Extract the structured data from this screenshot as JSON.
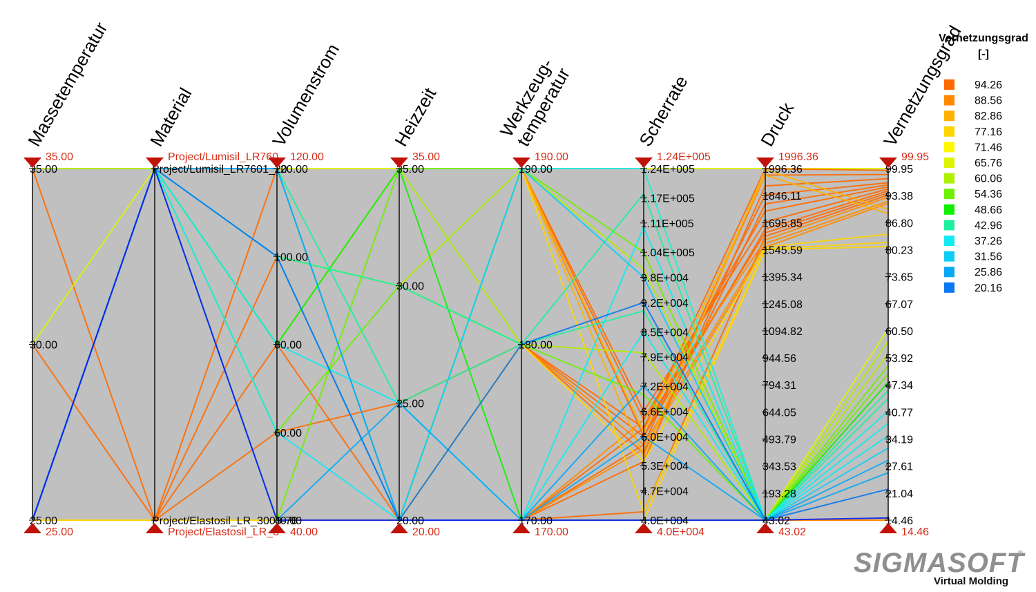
{
  "chart_data": {
    "type": "parallel_coordinates",
    "title": "",
    "axes": [
      {
        "name": "Massetemperatur",
        "min": 25,
        "max": 35,
        "min_label": "25.00",
        "max_label": "35.00",
        "ticks": [
          {
            "v": 35,
            "t": "35.00"
          },
          {
            "v": 30,
            "t": "30.00"
          },
          {
            "v": 25,
            "t": "25.00"
          }
        ]
      },
      {
        "name": "Material",
        "categorical": true,
        "min": 0,
        "max": 1,
        "min_label": "Project/Elastosil_LR_3",
        "max_label": "Project/Lumisil_LR760",
        "ticks": [
          {
            "v": 1,
            "t": "Project/Lumisil_LR7601_20"
          },
          {
            "v": 0,
            "t": "Project/Elastosil_LR_3003-70"
          }
        ]
      },
      {
        "name": "Volumenstrom",
        "min": 40,
        "max": 120,
        "min_label": "40.00",
        "max_label": "120.00",
        "ticks": [
          {
            "v": 120,
            "t": "120.00"
          },
          {
            "v": 100,
            "t": "100.00"
          },
          {
            "v": 80,
            "t": "80.00"
          },
          {
            "v": 60,
            "t": "60.00"
          },
          {
            "v": 40,
            "t": "40.00"
          }
        ]
      },
      {
        "name": "Heizzeit",
        "min": 20,
        "max": 35,
        "min_label": "20.00",
        "max_label": "35.00",
        "ticks": [
          {
            "v": 35,
            "t": "35.00"
          },
          {
            "v": 30,
            "t": "30.00"
          },
          {
            "v": 25,
            "t": "25.00"
          },
          {
            "v": 20,
            "t": "20.00"
          }
        ]
      },
      {
        "name": "Werkzeug-temperatur",
        "name_lines": [
          "Werkzeug-",
          "temperatur"
        ],
        "min": 170,
        "max": 190,
        "min_label": "170.00",
        "max_label": "190.00",
        "ticks": [
          {
            "v": 190,
            "t": "190.00"
          },
          {
            "v": 180,
            "t": "180.00"
          },
          {
            "v": 170,
            "t": "170.00"
          }
        ]
      },
      {
        "name": "Scherrate",
        "min": 40000,
        "max": 124000,
        "min_label": "4.0E+004",
        "max_label": "1.24E+005",
        "ticks": [
          {
            "v": 124000,
            "t": "1.24E+005"
          },
          {
            "v": 117000,
            "t": "1.17E+005"
          },
          {
            "v": 111000,
            "t": "1.11E+005"
          },
          {
            "v": 104000,
            "t": "1.04E+005"
          },
          {
            "v": 98000,
            "t": "9.8E+004"
          },
          {
            "v": 92000,
            "t": "9.2E+004"
          },
          {
            "v": 85000,
            "t": "8.5E+004"
          },
          {
            "v": 79000,
            "t": "7.9E+004"
          },
          {
            "v": 72000,
            "t": "7.2E+004"
          },
          {
            "v": 66000,
            "t": "6.6E+004"
          },
          {
            "v": 60000,
            "t": "6.0E+004"
          },
          {
            "v": 53000,
            "t": "5.3E+004"
          },
          {
            "v": 47000,
            "t": "4.7E+004"
          },
          {
            "v": 40000,
            "t": "4.0E+004"
          }
        ]
      },
      {
        "name": "Druck",
        "min": 43.02,
        "max": 1996.36,
        "min_label": "43.02",
        "max_label": "1996.36",
        "ticks": [
          {
            "v": 1996.36,
            "t": "1996.36"
          },
          {
            "v": 1846.11,
            "t": "1846.11"
          },
          {
            "v": 1695.85,
            "t": "1695.85"
          },
          {
            "v": 1545.59,
            "t": "1545.59"
          },
          {
            "v": 1395.34,
            "t": "1395.34"
          },
          {
            "v": 1245.08,
            "t": "1245.08"
          },
          {
            "v": 1094.82,
            "t": "1094.82"
          },
          {
            "v": 944.56,
            "t": "944.56"
          },
          {
            "v": 794.31,
            "t": "794.31"
          },
          {
            "v": 644.05,
            "t": "644.05"
          },
          {
            "v": 493.79,
            "t": "493.79"
          },
          {
            "v": 343.53,
            "t": "343.53"
          },
          {
            "v": 193.28,
            "t": "193.28"
          },
          {
            "v": 43.02,
            "t": "43.02"
          }
        ]
      },
      {
        "name": "Vernetzungsgrad",
        "min": 14.46,
        "max": 99.95,
        "min_label": "14.46",
        "max_label": "99.95",
        "ticks": [
          {
            "v": 99.95,
            "t": "99.95"
          },
          {
            "v": 93.38,
            "t": "93.38"
          },
          {
            "v": 86.8,
            "t": "86.80"
          },
          {
            "v": 80.23,
            "t": "80.23"
          },
          {
            "v": 73.65,
            "t": "73.65"
          },
          {
            "v": 67.07,
            "t": "67.07"
          },
          {
            "v": 60.5,
            "t": "60.50"
          },
          {
            "v": 53.92,
            "t": "53.92"
          },
          {
            "v": 47.34,
            "t": "47.34"
          },
          {
            "v": 40.77,
            "t": "40.77"
          },
          {
            "v": 34.19,
            "t": "34.19"
          },
          {
            "v": 27.61,
            "t": "27.61"
          },
          {
            "v": 21.04,
            "t": "21.04"
          },
          {
            "v": 14.46,
            "t": "14.46"
          }
        ]
      }
    ],
    "legend": {
      "title_lines": [
        "Vernetzungsgrad",
        "[-]"
      ],
      "placement": "right",
      "items": [
        {
          "label": "94.26",
          "color": "#ff6a00"
        },
        {
          "label": "88.56",
          "color": "#ff8a00"
        },
        {
          "label": "82.86",
          "color": "#ffb000"
        },
        {
          "label": "77.16",
          "color": "#ffd500"
        },
        {
          "label": "71.46",
          "color": "#fff700"
        },
        {
          "label": "65.76",
          "color": "#ddf500"
        },
        {
          "label": "60.06",
          "color": "#aef000"
        },
        {
          "label": "54.36",
          "color": "#6ef000"
        },
        {
          "label": "48.66",
          "color": "#12ee00"
        },
        {
          "label": "42.96",
          "color": "#1ef0a0"
        },
        {
          "label": "37.26",
          "color": "#12eaf0"
        },
        {
          "label": "31.56",
          "color": "#10cdf5"
        },
        {
          "label": "25.86",
          "color": "#0aa8f5"
        },
        {
          "label": "20.16",
          "color": "#0a78f0"
        }
      ]
    },
    "polylines": [
      {
        "values": [
          35,
          0,
          120,
          20,
          170,
          62000,
          1996,
          99.5
        ],
        "color": "#ff6a00"
      },
      {
        "values": [
          30,
          0,
          100,
          20,
          170,
          58000,
          1960,
          98.5
        ],
        "color": "#ff6a00"
      },
      {
        "values": [
          25,
          0,
          80,
          20,
          170,
          54000,
          1900,
          97.5
        ],
        "color": "#ff6a00"
      },
      {
        "values": [
          25,
          0,
          60,
          25,
          180,
          60000,
          1850,
          96.5
        ],
        "color": "#ff6a00"
      },
      {
        "values": [
          25,
          0,
          40,
          20,
          180,
          56000,
          1800,
          96.0
        ],
        "color": "#ff6a00"
      },
      {
        "values": [
          25,
          0,
          40,
          20,
          190,
          64000,
          1760,
          95.5
        ],
        "color": "#ff6a00"
      },
      {
        "values": [
          25,
          0,
          40,
          20,
          190,
          66000,
          1700,
          95.0
        ],
        "color": "#ff6a00"
      },
      {
        "values": [
          25,
          0,
          40,
          20,
          190,
          60000,
          1660,
          94.5
        ],
        "color": "#ff6a00"
      },
      {
        "values": [
          25,
          0,
          40,
          20,
          180,
          62000,
          1640,
          94.0
        ],
        "color": "#ff6a00"
      },
      {
        "values": [
          25,
          0,
          40,
          20,
          170,
          42000,
          1620,
          93.5
        ],
        "color": "#ff6a00"
      },
      {
        "values": [
          25,
          0,
          40,
          20,
          170,
          64000,
          1600,
          93.0
        ],
        "color": "#ff8a00"
      },
      {
        "values": [
          25,
          0,
          40,
          20,
          180,
          58000,
          1580,
          92.0
        ],
        "color": "#ff8a00"
      },
      {
        "values": [
          25,
          0,
          40,
          20,
          170,
          57000,
          1560,
          91.5
        ],
        "color": "#ff8a00"
      },
      {
        "values": [
          25,
          0,
          40,
          20,
          190,
          55000,
          1990,
          90.0
        ],
        "color": "#ffb000"
      },
      {
        "values": [
          25,
          0,
          40,
          20,
          190,
          61000,
          1960,
          89.0
        ],
        "color": "#ffb000"
      },
      {
        "values": [
          25,
          0,
          40,
          20,
          180,
          54000,
          1560,
          84.0
        ],
        "color": "#ffd500"
      },
      {
        "values": [
          25,
          0,
          40,
          20,
          190,
          42000,
          1550,
          82.0
        ],
        "color": "#ffd500"
      },
      {
        "values": [
          25,
          0,
          40,
          20,
          170,
          40000,
          1545,
          81.0
        ],
        "color": "#ffd500"
      },
      {
        "values": [
          30,
          1,
          120,
          35,
          190,
          124000,
          43.02,
          61.0
        ],
        "color": "#ddf500"
      },
      {
        "values": [
          25,
          1,
          100,
          30,
          190,
          100000,
          43.02,
          58.0
        ],
        "color": "#aef000"
      },
      {
        "values": [
          35,
          1,
          80,
          35,
          180,
          80000,
          43.02,
          55.0
        ],
        "color": "#aef000"
      },
      {
        "values": [
          25,
          1,
          60,
          30,
          180,
          70000,
          43.02,
          52.0
        ],
        "color": "#6ef000"
      },
      {
        "values": [
          25,
          1,
          40,
          35,
          190,
          104000,
          43.02,
          50.0
        ],
        "color": "#6ef000"
      },
      {
        "values": [
          25,
          1,
          80,
          35,
          170,
          40000,
          43.02,
          48.0
        ],
        "color": "#12ee00"
      },
      {
        "values": [
          25,
          1,
          100,
          30,
          180,
          90000,
          43.02,
          46.0
        ],
        "color": "#1ef0a0"
      },
      {
        "values": [
          25,
          1,
          120,
          25,
          180,
          118000,
          43.02,
          44.0
        ],
        "color": "#1ef0a0"
      },
      {
        "values": [
          25,
          1,
          60,
          20,
          190,
          124000,
          43.02,
          41.0
        ],
        "color": "#12eaf0"
      },
      {
        "values": [
          25,
          1,
          120,
          20,
          170,
          110000,
          43.02,
          38.0
        ],
        "color": "#12eaf0"
      },
      {
        "values": [
          25,
          1,
          80,
          25,
          170,
          85000,
          43.02,
          35.0
        ],
        "color": "#12eaf0"
      },
      {
        "values": [
          25,
          1,
          100,
          20,
          190,
          98000,
          43.02,
          32.0
        ],
        "color": "#10cdf5"
      },
      {
        "values": [
          25,
          1,
          40,
          25,
          170,
          72000,
          43.02,
          29.0
        ],
        "color": "#0aa8f5"
      },
      {
        "values": [
          25,
          1,
          120,
          20,
          170,
          60000,
          43.02,
          26.0
        ],
        "color": "#0aa8f5"
      },
      {
        "values": [
          25,
          1,
          100,
          20,
          180,
          92000,
          43.02,
          22.0
        ],
        "color": "#0a78f0"
      },
      {
        "values": [
          25,
          1,
          40,
          20,
          170,
          40000,
          43.02,
          15.0
        ],
        "color": "#0a1ef0"
      }
    ]
  },
  "logo": {
    "name": "SIGMASOFT",
    "tagline": "Virtual Molding"
  }
}
